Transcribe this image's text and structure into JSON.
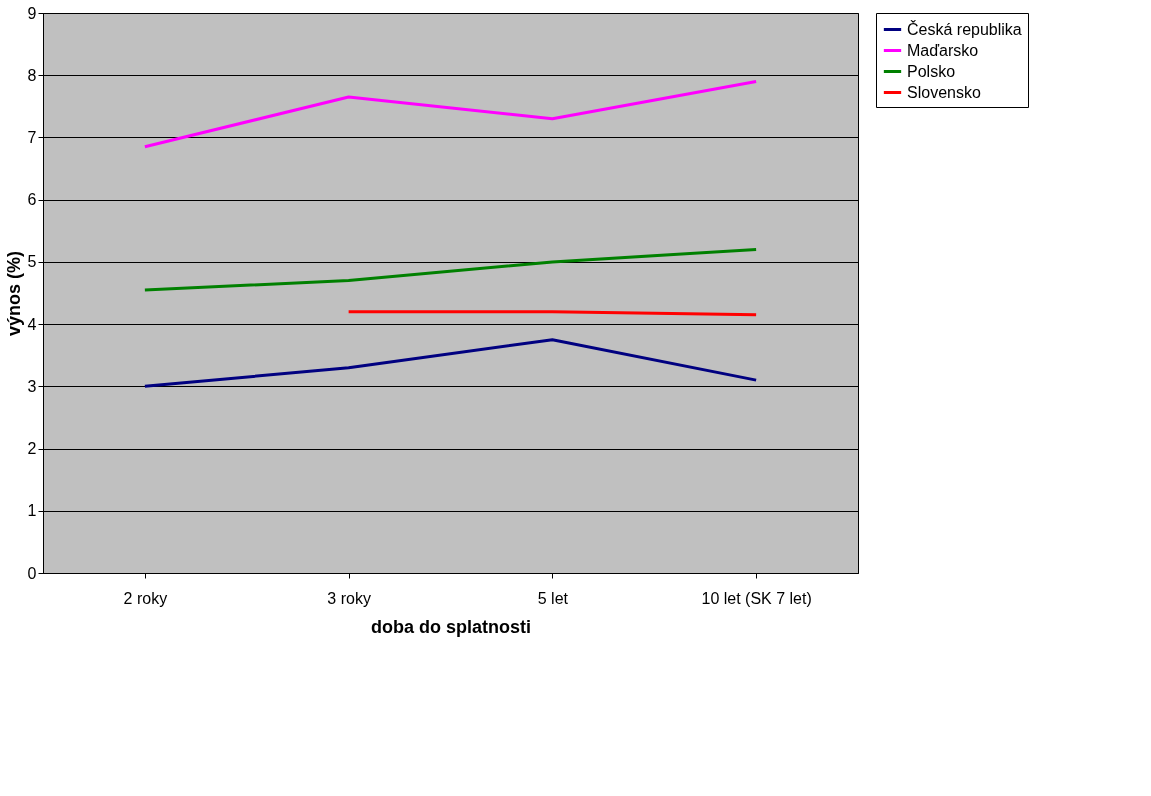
{
  "chart_data": {
    "type": "line",
    "xlabel": "doba do splatnosti",
    "ylabel": "výnos (%)",
    "categories": [
      "2 roky",
      "3 roky",
      "5 let",
      "10 let (SK 7 let)"
    ],
    "series": [
      {
        "name": "Česká republika",
        "color": "#000080",
        "values": [
          3.0,
          3.3,
          3.75,
          3.1
        ]
      },
      {
        "name": "Maďarsko",
        "color": "#ff00ff",
        "values": [
          6.85,
          7.65,
          7.3,
          7.9
        ]
      },
      {
        "name": "Polsko",
        "color": "#008000",
        "values": [
          4.55,
          4.7,
          5.0,
          5.2
        ]
      },
      {
        "name": "Slovensko",
        "color": "#ff0000",
        "values": [
          null,
          4.2,
          4.2,
          4.15
        ]
      }
    ],
    "ylim": [
      0,
      9
    ],
    "yticks": [
      0,
      1,
      2,
      3,
      4,
      5,
      6,
      7,
      8,
      9
    ],
    "grid": "y",
    "legend": "right",
    "marker": "none",
    "line_style": "solid"
  }
}
